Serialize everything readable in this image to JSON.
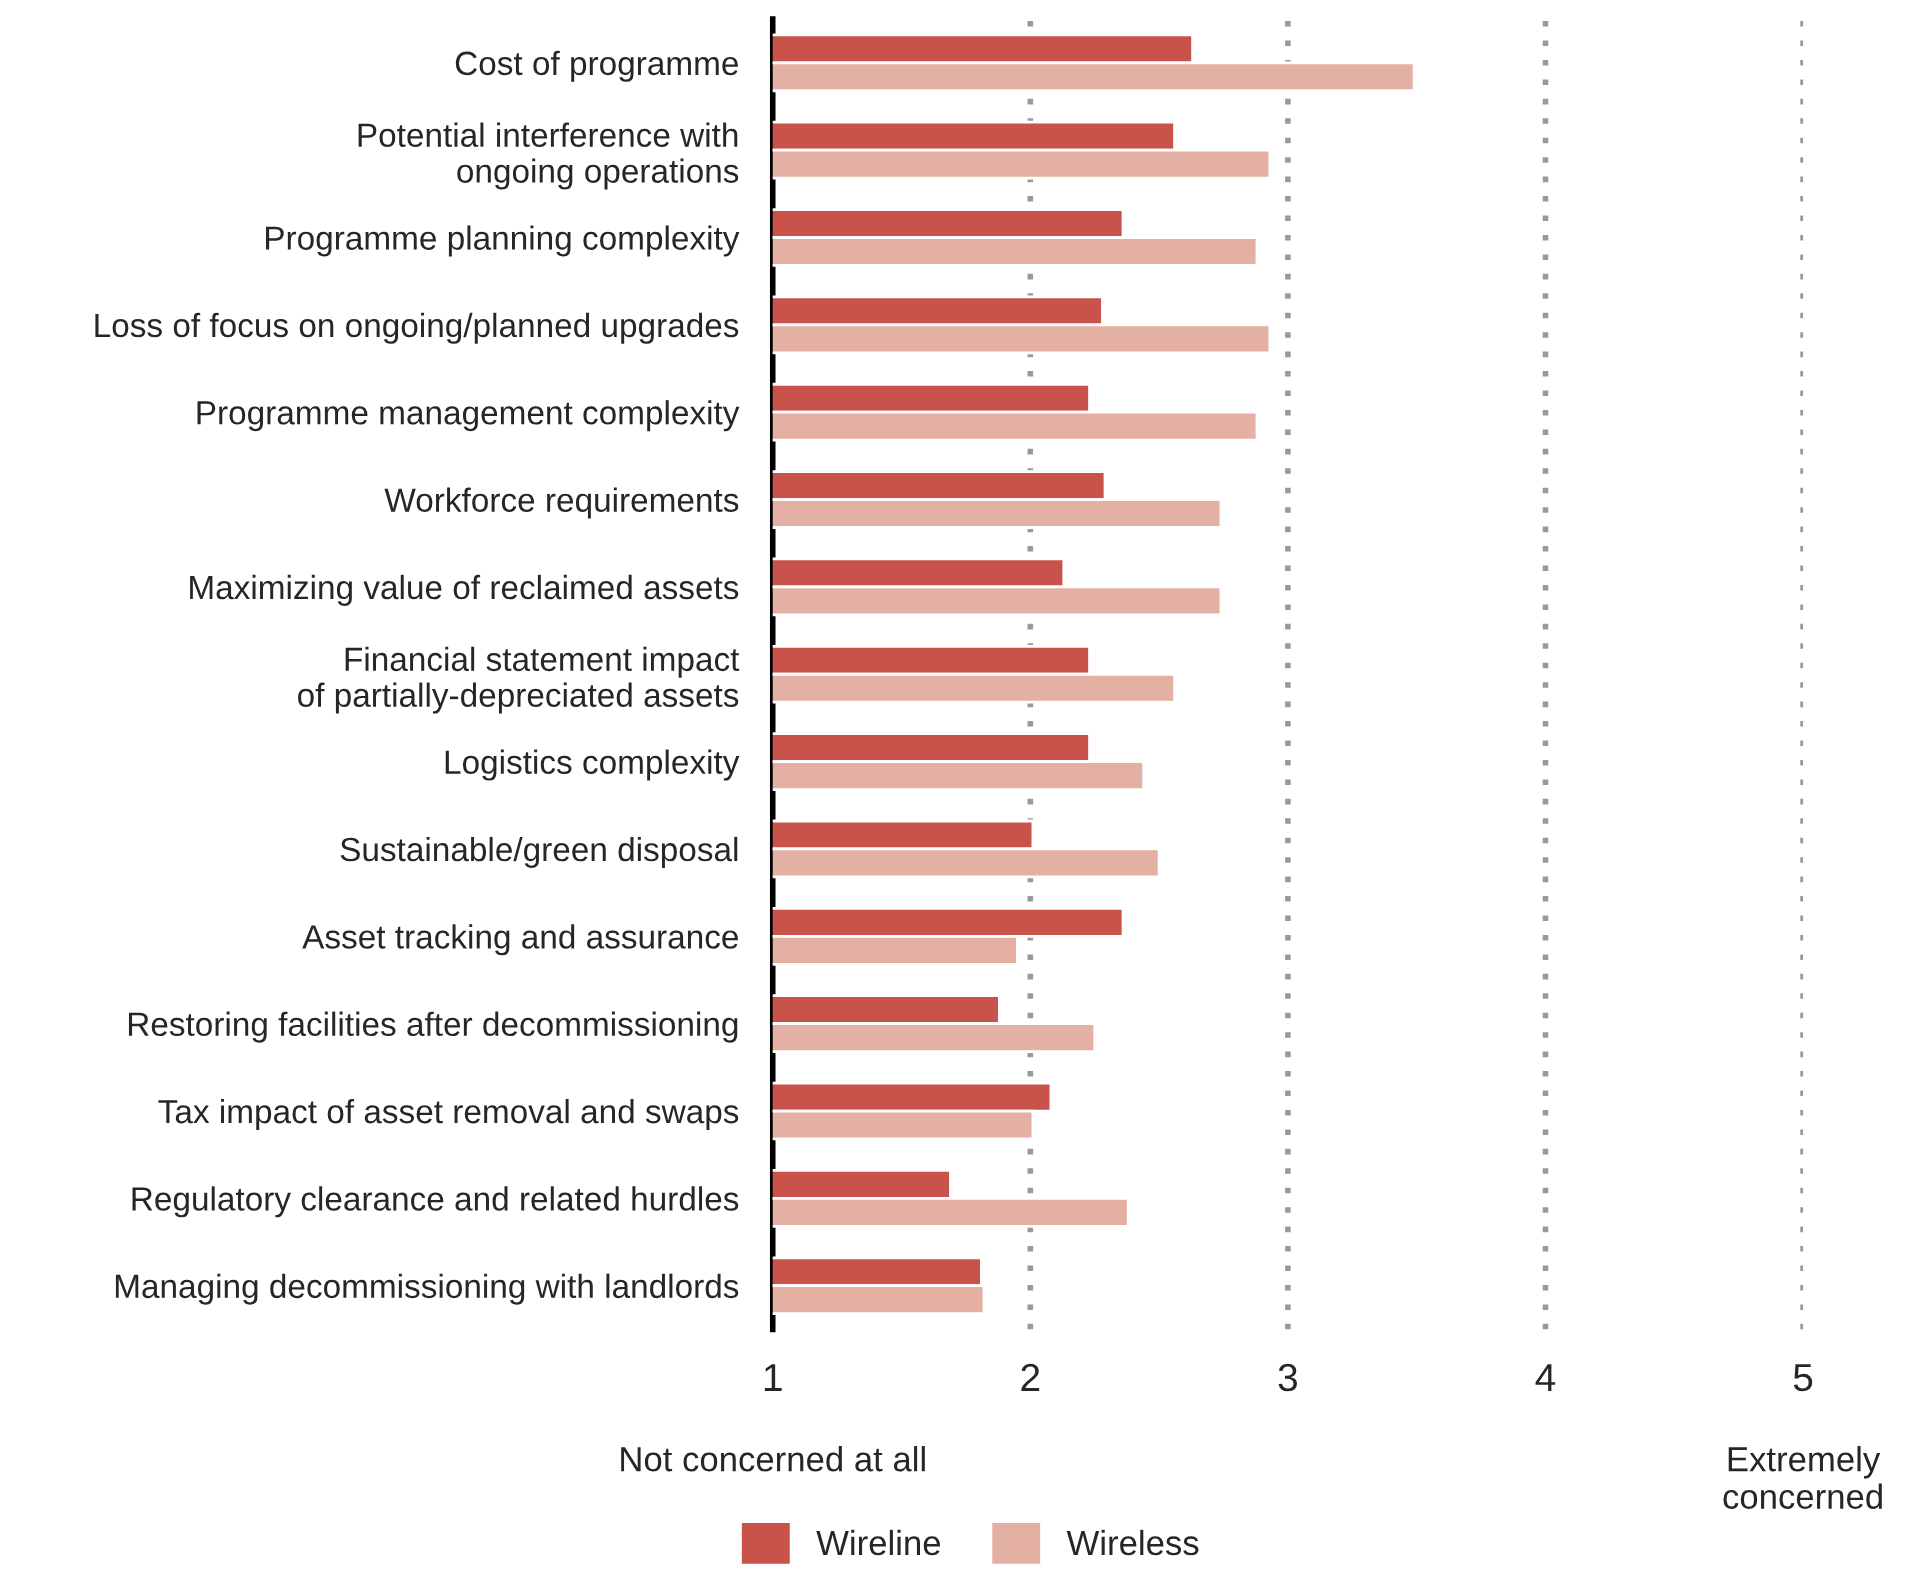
{
  "chart_data": {
    "type": "bar",
    "orientation": "horizontal",
    "categories": [
      "Cost of programme",
      "Potential interference with\nongoing operations",
      "Programme planning complexity",
      "Loss of focus on ongoing/planned upgrades",
      "Programme management complexity",
      "Workforce requirements",
      "Maximizing value of reclaimed assets",
      "Financial statement impact\nof partially-depreciated assets",
      "Logistics complexity",
      "Sustainable/green disposal",
      "Asset tracking and assurance",
      "Restoring facilities after decommissioning",
      "Tax impact of asset removal and swaps",
      "Regulatory clearance and related hurdles",
      "Managing decommissioning with landlords"
    ],
    "series": [
      {
        "name": "Wireline",
        "color": "#c8534a",
        "values": [
          2.63,
          2.56,
          2.36,
          2.28,
          2.23,
          2.29,
          2.13,
          2.23,
          2.23,
          2.01,
          2.36,
          1.88,
          2.08,
          1.69,
          1.81
        ]
      },
      {
        "name": "Wireless",
        "color": "#e3b0a3",
        "values": [
          3.49,
          2.93,
          2.88,
          2.93,
          2.88,
          2.74,
          2.74,
          2.56,
          2.44,
          2.5,
          1.95,
          2.25,
          2.01,
          2.38,
          1.82
        ]
      }
    ],
    "xlim": [
      1,
      5
    ],
    "xticks": [
      1,
      2,
      3,
      4,
      5
    ],
    "grid": "x",
    "legend": "bottom",
    "annotations": [
      "Not concerned at all",
      "Extremely\nconcerned"
    ]
  }
}
